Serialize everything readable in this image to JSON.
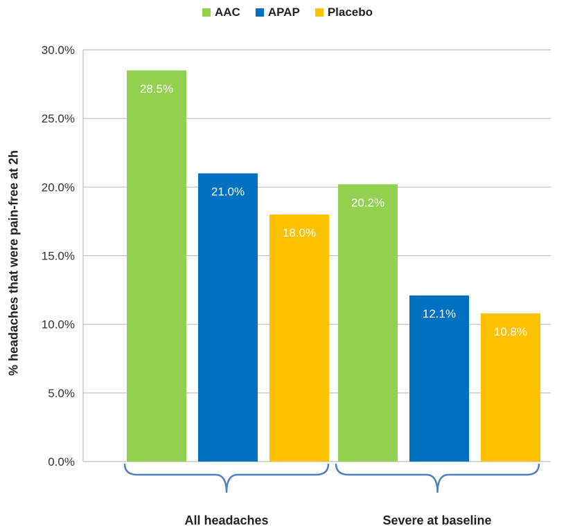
{
  "chart_data": {
    "type": "bar",
    "categories": [
      "All headaches",
      "Severe at baseline"
    ],
    "series": [
      {
        "name": "AAC",
        "values": [
          28.5,
          20.2
        ],
        "labels": [
          "28.5%",
          "20.2%"
        ],
        "color": "#92d050"
      },
      {
        "name": "APAP",
        "values": [
          21.0,
          12.1
        ],
        "labels": [
          "21.0%",
          "12.1%"
        ],
        "color": "#0070c0"
      },
      {
        "name": "Placebo",
        "values": [
          18.0,
          10.8
        ],
        "labels": [
          "18.0%",
          "10.8%"
        ],
        "color": "#ffc000"
      }
    ],
    "ylabel": "% headaches that were pain-free at 2h",
    "ylim": [
      0,
      30
    ],
    "yticks": [
      0,
      5,
      10,
      15,
      20,
      25,
      30
    ],
    "ytick_labels": [
      "0.0%",
      "5.0%",
      "10.0%",
      "15.0%",
      "20.0%",
      "25.0%",
      "30.0%"
    ],
    "grid": true,
    "legend_position": "top-center",
    "brace_color": "#4f81bd"
  }
}
